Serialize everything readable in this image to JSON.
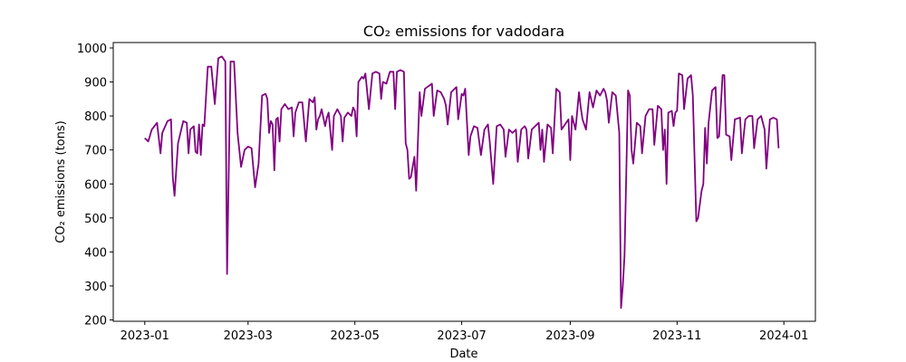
{
  "chart_data": {
    "type": "line",
    "title": "CO₂ emissions for vadodara",
    "xlabel": "Date",
    "ylabel": "CO₂ emissions (tons)",
    "color": "#800080",
    "x": [
      0,
      2,
      4,
      7,
      9,
      10,
      13,
      15,
      16,
      17,
      19,
      22,
      24,
      25,
      26,
      28,
      29,
      30,
      31,
      32,
      33,
      34,
      36,
      38,
      40,
      42,
      44,
      46,
      47,
      49,
      51,
      53,
      55,
      57,
      59,
      61,
      63,
      65,
      67,
      69,
      70,
      71,
      72,
      73,
      74,
      75,
      76,
      77,
      78,
      80,
      82,
      84,
      85,
      86,
      88,
      90,
      92,
      94,
      96,
      97,
      98,
      99,
      100,
      101,
      103,
      104,
      105,
      107,
      108,
      110,
      112,
      113,
      114,
      116,
      118,
      119,
      120,
      121,
      122,
      124,
      125,
      126,
      128,
      130,
      132,
      134,
      135,
      136,
      138,
      140,
      142,
      143,
      144,
      146,
      148,
      149,
      150,
      151,
      152,
      154,
      155,
      157,
      158,
      160,
      164,
      165,
      167,
      169,
      171,
      172,
      173,
      175,
      178,
      179,
      181,
      182,
      183,
      185,
      186,
      188,
      190,
      192,
      194,
      196,
      197,
      199,
      201,
      203,
      205,
      206,
      208,
      210,
      212,
      213,
      215,
      217,
      218,
      219,
      221,
      223,
      225,
      226,
      227,
      228,
      230,
      232,
      233,
      235,
      237,
      238,
      240,
      242,
      243,
      244,
      246,
      248,
      249,
      250,
      252,
      254,
      256,
      258,
      260,
      262,
      263,
      264,
      265,
      267,
      269,
      271,
      272,
      273,
      274,
      276,
      277,
      278,
      279,
      281,
      283,
      284,
      286,
      288,
      290,
      291,
      293,
      295,
      296,
      297,
      298,
      299,
      301,
      302,
      303,
      304,
      305,
      307,
      308,
      310,
      312,
      313,
      315,
      316,
      318,
      319,
      320,
      321,
      322,
      324,
      326,
      327,
      328,
      330,
      331,
      332,
      334,
      335,
      337,
      340,
      341,
      343,
      345,
      347,
      348,
      350,
      352,
      354,
      355,
      357,
      359,
      361,
      362
    ],
    "values": [
      735,
      725,
      760,
      780,
      690,
      750,
      785,
      790,
      620,
      565,
      720,
      785,
      780,
      690,
      760,
      770,
      695,
      690,
      775,
      685,
      775,
      770,
      945,
      945,
      835,
      970,
      975,
      960,
      335,
      960,
      960,
      750,
      650,
      700,
      710,
      705,
      590,
      660,
      860,
      865,
      850,
      750,
      785,
      775,
      640,
      790,
      795,
      725,
      820,
      835,
      820,
      825,
      740,
      810,
      840,
      840,
      725,
      850,
      840,
      855,
      760,
      790,
      800,
      820,
      770,
      795,
      810,
      700,
      800,
      820,
      800,
      725,
      795,
      810,
      800,
      825,
      815,
      740,
      900,
      915,
      910,
      925,
      820,
      925,
      930,
      925,
      850,
      900,
      895,
      930,
      930,
      820,
      930,
      935,
      930,
      720,
      700,
      615,
      620,
      680,
      580,
      870,
      800,
      880,
      895,
      800,
      875,
      870,
      850,
      830,
      775,
      870,
      885,
      790,
      865,
      860,
      880,
      685,
      740,
      770,
      765,
      685,
      760,
      775,
      725,
      600,
      770,
      775,
      760,
      680,
      760,
      750,
      760,
      665,
      760,
      770,
      760,
      675,
      760,
      770,
      780,
      700,
      760,
      665,
      775,
      765,
      690,
      880,
      870,
      760,
      775,
      790,
      670,
      800,
      760,
      870,
      825,
      790,
      760,
      870,
      825,
      875,
      860,
      880,
      870,
      845,
      780,
      870,
      860,
      750,
      235,
      300,
      390,
      875,
      860,
      700,
      660,
      780,
      770,
      690,
      800,
      820,
      820,
      715,
      830,
      820,
      700,
      760,
      600,
      810,
      815,
      770,
      810,
      815,
      925,
      920,
      820,
      910,
      920,
      860,
      490,
      500,
      580,
      600,
      765,
      660,
      780,
      875,
      885,
      735,
      740,
      920,
      920,
      745,
      740,
      670,
      790,
      795,
      690,
      790,
      800,
      800,
      705,
      790,
      800,
      760,
      645,
      790,
      795,
      790,
      705
    ],
    "xlim": [
      -18,
      383
    ],
    "ylim": [
      196,
      1016
    ],
    "xticks": [
      {
        "value": 0,
        "label": "2023-01"
      },
      {
        "value": 59,
        "label": "2023-03"
      },
      {
        "value": 120,
        "label": "2023-05"
      },
      {
        "value": 181,
        "label": "2023-07"
      },
      {
        "value": 243,
        "label": "2023-09"
      },
      {
        "value": 304,
        "label": "2023-11"
      },
      {
        "value": 365,
        "label": "2024-01"
      }
    ],
    "yticks": [
      200,
      300,
      400,
      500,
      600,
      700,
      800,
      900,
      1000
    ]
  }
}
